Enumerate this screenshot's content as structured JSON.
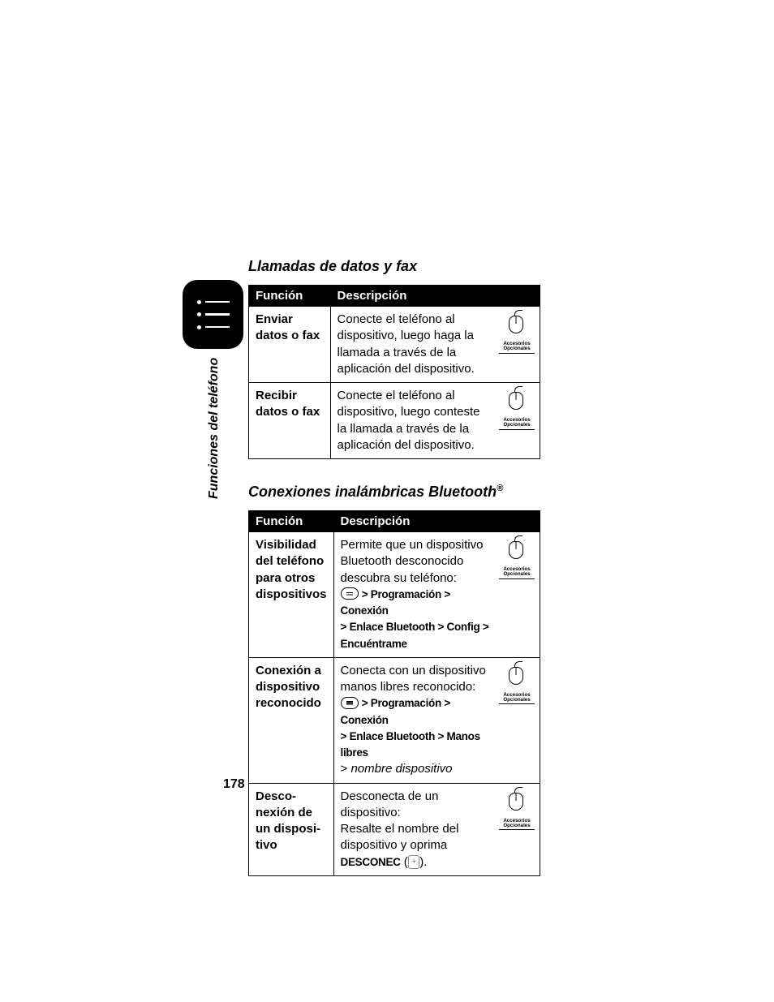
{
  "page": {
    "sidebar_label": "Funciones del teléfono",
    "number": "178"
  },
  "sections": {
    "datafax": {
      "title": "Llamadas de datos y fax",
      "header_fn": "Función",
      "header_desc": "Descripción",
      "rows": [
        {
          "fn": "Enviar datos o fax",
          "desc": "Conecte el teléfono al dispositivo, luego haga la llamada a través de la aplicación del dispositivo.",
          "acc1": "Accesorios",
          "acc2": "Opcionales"
        },
        {
          "fn": "Recibir datos o fax",
          "desc": "Conecte el teléfono al dispositivo, luego conteste la llamada a través de la aplicación del dispositivo.",
          "acc1": "Accesorios",
          "acc2": "Opcionales"
        }
      ]
    },
    "bluetooth": {
      "title_pre": "Conexiones inalámbricas Bluetooth",
      "title_reg": "®",
      "header_fn": "Función",
      "header_desc": "Descripción",
      "rows": [
        {
          "fn": "Visibilidad del teléfono para otros dispositivos",
          "desc_intro": "Permite que un dispositivo Bluetooth desconocido descubra su teléfono:",
          "nav1_a": "Programación",
          "nav1_b": "Conexión",
          "nav2_a": "Enlace Bluetooth",
          "nav2_b": "Config",
          "nav2_c": "Encuéntrame",
          "acc1": "Accesorios",
          "acc2": "Opcionales"
        },
        {
          "fn": "Conexión a dispositivo reconocido",
          "desc_intro": "Conecta con un dispositivo manos libres reconocido:",
          "nav1_a": "Programación",
          "nav1_b": "Conexión",
          "nav2_a": "Enlace Bluetooth",
          "nav2_b": "Manos libres",
          "nav3_italic": "nombre dispositivo",
          "acc1": "Accesorios",
          "acc2": "Opcionales"
        },
        {
          "fn": "Desco-nexión de un disposi-tivo",
          "desc_intro": "Desconecta de un dispositivo:",
          "desc_line2": "Resalte el nombre del dispositivo y oprima",
          "softkey_label": "DESCONEC",
          "softkey_glyph": "+",
          "period": ".",
          "acc1": "Accesorios",
          "acc2": "Opcionales"
        }
      ]
    }
  },
  "gt": ">"
}
